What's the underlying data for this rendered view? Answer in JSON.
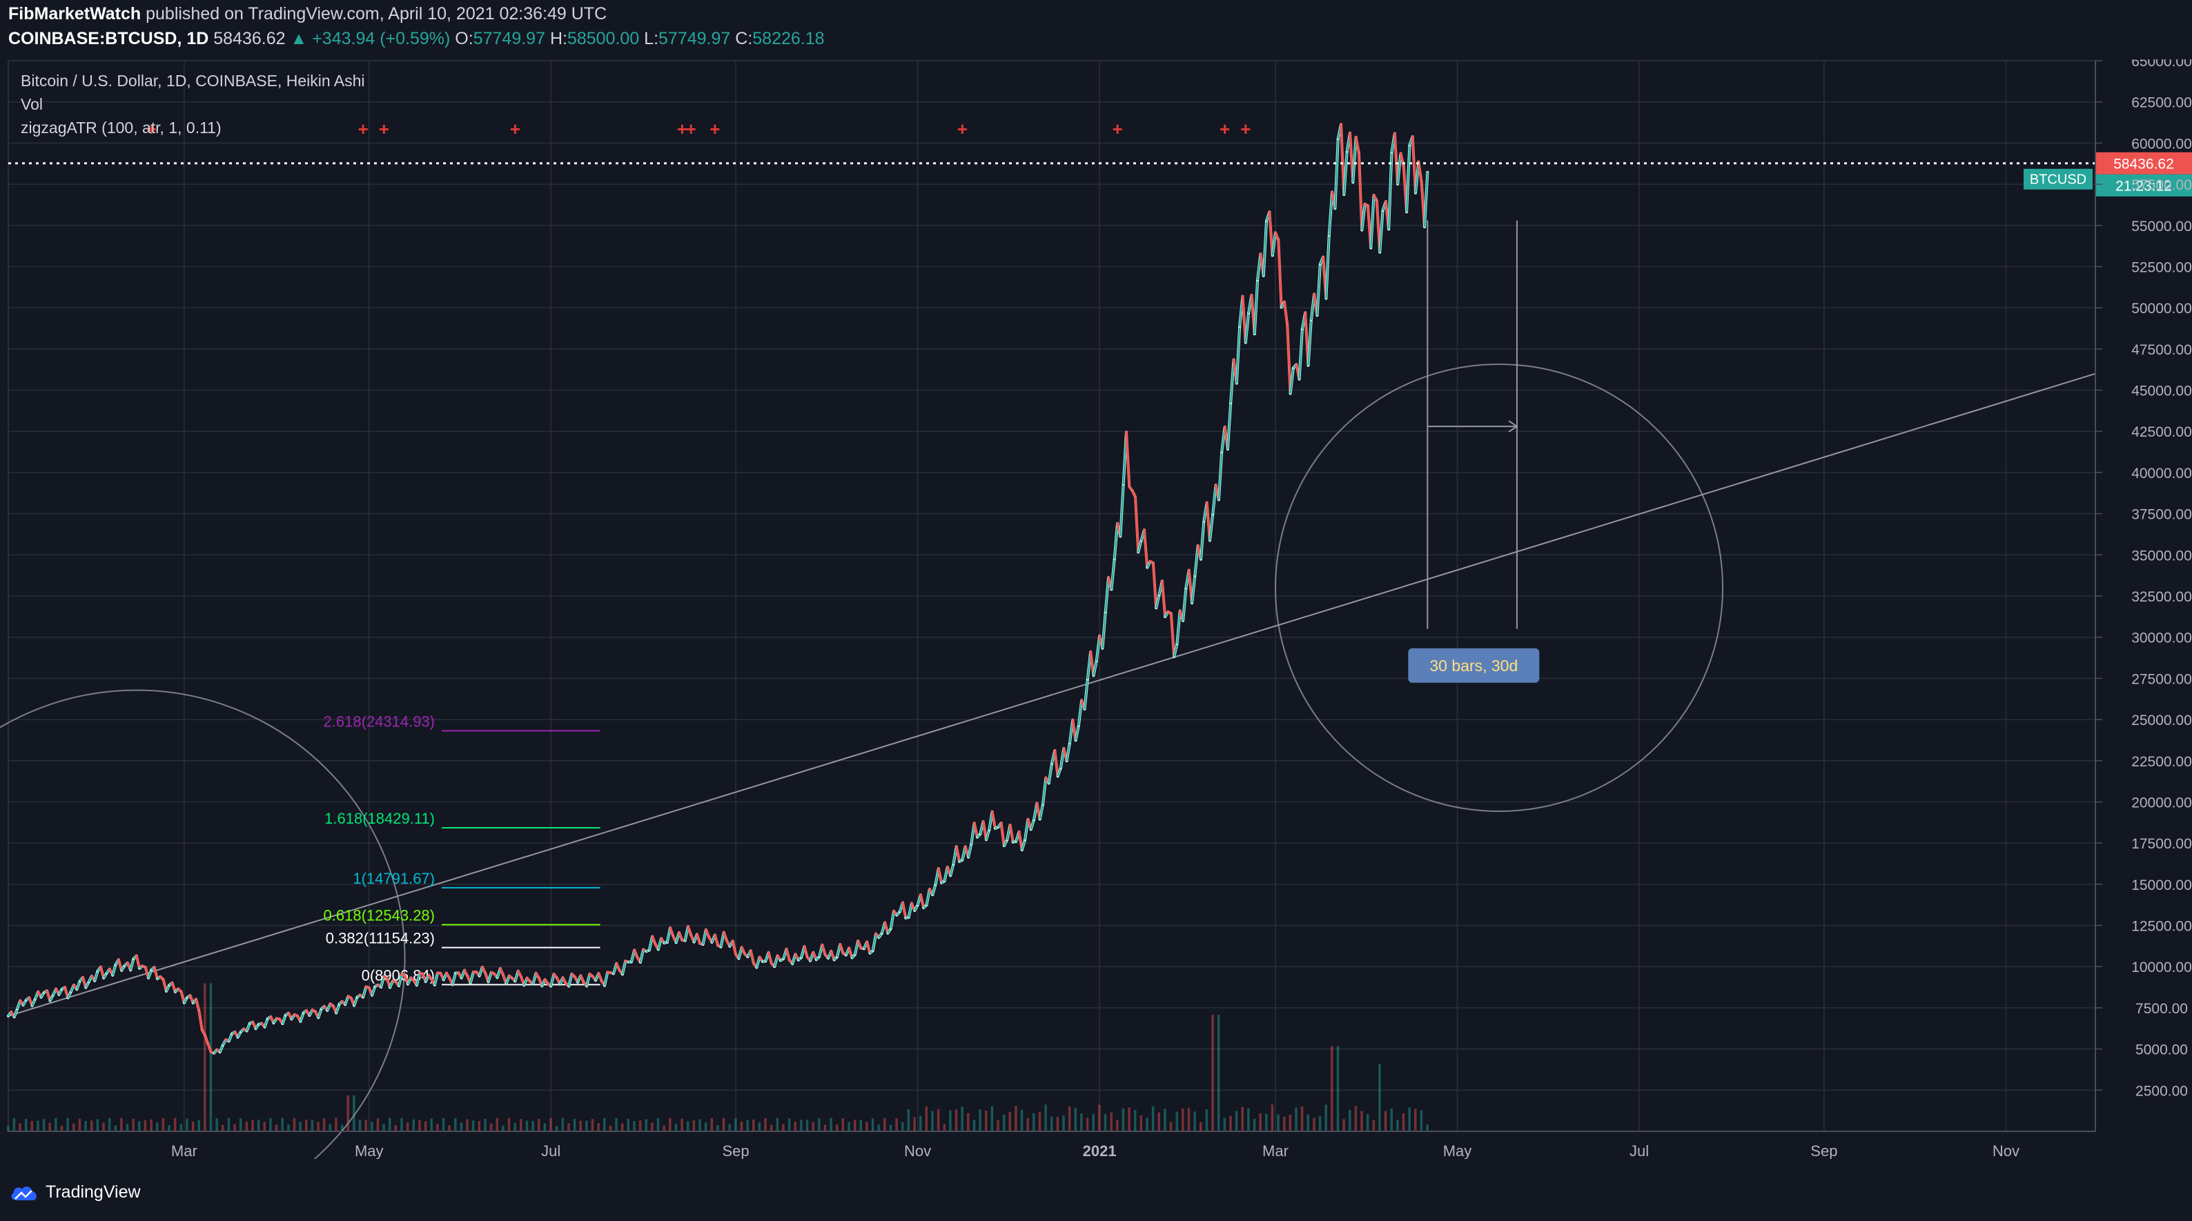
{
  "header": {
    "author": "FibMarketWatch",
    "published_text": "published on TradingView.com, April 10, 2021 02:36:49 UTC",
    "symbol": "COINBASE:BTCUSD, 1D",
    "last_price": "58436.62",
    "change": "+343.94 (+0.59%)",
    "open_label": "O:",
    "open": "57749.97",
    "high_label": "H:",
    "high": "58500.00",
    "low_label": "L:",
    "low": "57749.97",
    "close_label": "C:",
    "close": "58226.18"
  },
  "legend": {
    "title": "Bitcoin / U.S. Dollar, 1D, COINBASE, Heikin Ashi",
    "volume": "Vol",
    "indicator": "zigzagATR (100, atr, 1, 0.11)"
  },
  "price_tag": {
    "symbol": "BTCUSD",
    "price": "58436.62",
    "countdown": "21:23:12"
  },
  "measure_label": "30 bars, 30d",
  "footer": {
    "brand": "TradingView"
  },
  "colors": {
    "up": "#26a69a",
    "down": "#ef5350",
    "bg": "#131722",
    "grid": "#2a2e39",
    "axis_text": "#b2b5be",
    "measure": "#5b7fb8"
  },
  "chart_data": {
    "type": "line",
    "title": "Bitcoin / U.S. Dollar, 1D, COINBASE, Heikin Ashi",
    "ylim": [
      0,
      65000
    ],
    "y_ticks": [
      "2500.00",
      "5000.00",
      "7500.00",
      "10000.00",
      "12500.00",
      "15000.00",
      "17500.00",
      "20000.00",
      "22500.00",
      "25000.00",
      "27500.00",
      "30000.00",
      "32500.00",
      "35000.00",
      "37500.00",
      "40000.00",
      "42500.00",
      "45000.00",
      "47500.00",
      "50000.00",
      "52500.00",
      "55000.00",
      "57500.00",
      "60000.00",
      "62500.00",
      "65000.00"
    ],
    "x_ticks": [
      "Mar",
      "May",
      "Jul",
      "Sep",
      "Nov",
      "2021",
      "Mar",
      "May",
      "Jul",
      "Sep",
      "Nov"
    ],
    "x_tick_days": [
      59,
      121,
      182,
      244,
      305,
      366,
      425,
      486,
      547,
      609,
      670
    ],
    "x_domain_days": [
      0,
      700
    ],
    "series": [
      {
        "name": "BTCUSD",
        "points": [
          [
            0,
            7000
          ],
          [
            6,
            7900
          ],
          [
            12,
            8300
          ],
          [
            20,
            8500
          ],
          [
            30,
            9500
          ],
          [
            42,
            10300
          ],
          [
            48,
            9700
          ],
          [
            55,
            8700
          ],
          [
            63,
            7800
          ],
          [
            67,
            5200
          ],
          [
            69,
            4600
          ],
          [
            73,
            5500
          ],
          [
            80,
            6300
          ],
          [
            90,
            6800
          ],
          [
            100,
            7100
          ],
          [
            110,
            7600
          ],
          [
            118,
            8200
          ],
          [
            125,
            9000
          ],
          [
            133,
            9200
          ],
          [
            140,
            9300
          ],
          [
            150,
            9400
          ],
          [
            160,
            9600
          ],
          [
            170,
            9300
          ],
          [
            180,
            9100
          ],
          [
            190,
            9200
          ],
          [
            200,
            9300
          ],
          [
            210,
            10500
          ],
          [
            218,
            11500
          ],
          [
            225,
            11900
          ],
          [
            233,
            11700
          ],
          [
            240,
            11600
          ],
          [
            246,
            10800
          ],
          [
            252,
            10300
          ],
          [
            260,
            10500
          ],
          [
            270,
            10700
          ],
          [
            280,
            10800
          ],
          [
            290,
            11300
          ],
          [
            298,
            13200
          ],
          [
            306,
            13700
          ],
          [
            313,
            15400
          ],
          [
            320,
            16800
          ],
          [
            327,
            18500
          ],
          [
            332,
            18500
          ],
          [
            338,
            17500
          ],
          [
            344,
            18700
          ],
          [
            350,
            22000
          ],
          [
            356,
            23200
          ],
          [
            360,
            25800
          ],
          [
            365,
            29000
          ],
          [
            369,
            32000
          ],
          [
            372,
            36500
          ],
          [
            375,
            40500
          ],
          [
            378,
            38000
          ],
          [
            381,
            35000
          ],
          [
            385,
            33500
          ],
          [
            389,
            31000
          ],
          [
            392,
            30000
          ],
          [
            396,
            33000
          ],
          [
            400,
            35500
          ],
          [
            404,
            38000
          ],
          [
            408,
            41000
          ],
          [
            411,
            46500
          ],
          [
            414,
            48500
          ],
          [
            417,
            50500
          ],
          [
            420,
            51000
          ],
          [
            422,
            55000
          ],
          [
            424,
            56000
          ],
          [
            426,
            52000
          ],
          [
            429,
            48500
          ],
          [
            432,
            45000
          ],
          [
            435,
            49000
          ],
          [
            438,
            49500
          ],
          [
            441,
            52000
          ],
          [
            444,
            56000
          ],
          [
            447,
            59500
          ],
          [
            450,
            60000
          ],
          [
            453,
            57500
          ],
          [
            456,
            56000
          ],
          [
            459,
            54500
          ],
          [
            462,
            56500
          ],
          [
            466,
            59000
          ],
          [
            470,
            58500
          ],
          [
            474,
            57700
          ],
          [
            476,
            58226
          ]
        ]
      },
      {
        "name": "Volume",
        "points": [
          [
            67,
            16500
          ],
          [
            115,
            4000
          ],
          [
            405,
            13000
          ],
          [
            445,
            9500
          ],
          [
            460,
            7500
          ]
        ]
      }
    ],
    "fib_levels": [
      {
        "label": "2.618(24314.93)",
        "value": 24314.93,
        "color": "#9c27b0"
      },
      {
        "label": "1.618(18429.11)",
        "value": 18429.11,
        "color": "#00e676"
      },
      {
        "label": "1(14791.67)",
        "value": 14791.67,
        "color": "#00bcd4"
      },
      {
        "label": "0.618(12543.28)",
        "value": 12543.28,
        "color": "#76ff03"
      },
      {
        "label": "0.382(11154.23)",
        "value": 11154.23,
        "color": "#ffffff"
      },
      {
        "label": "0(8906.84)",
        "value": 8906.84,
        "color": "#ffffff"
      }
    ],
    "fib_anchor_days": [
      120,
      180
    ],
    "last_price": 58436.62,
    "trendline": {
      "from": [
        0,
        7000
      ],
      "to": [
        700,
        46000
      ]
    },
    "measure": {
      "from_day": 476,
      "to_day": 506,
      "top": 55300,
      "bottom": 30500,
      "arrow_y": 42800
    },
    "zigzag_markers_days": [
      48,
      119,
      126,
      170,
      226,
      229,
      237,
      320,
      372,
      408,
      415
    ],
    "circles": [
      {
        "center": [
          43,
          10500
        ],
        "radius_days": 90,
        "note": "lower-left arc"
      },
      {
        "center": [
          500,
          33000
        ],
        "radius_days": 75,
        "note": "right arc"
      }
    ]
  }
}
